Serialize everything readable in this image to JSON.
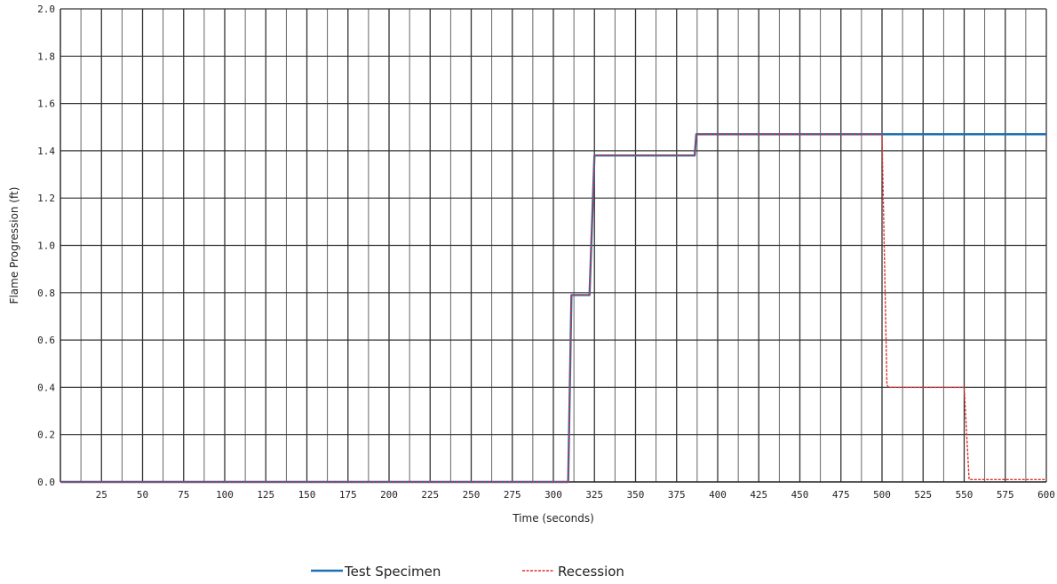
{
  "chart_data": {
    "type": "line",
    "xlabel": "Time (seconds)",
    "ylabel": "Flame Progression (ft)",
    "xlim": [
      0,
      600
    ],
    "ylim": [
      0,
      2.0
    ],
    "x_ticks": [
      25,
      50,
      75,
      100,
      125,
      150,
      175,
      200,
      225,
      250,
      275,
      300,
      325,
      350,
      375,
      400,
      425,
      450,
      475,
      500,
      525,
      550,
      575,
      600
    ],
    "y_ticks": [
      "0.0",
      "0.2",
      "0.4",
      "0.6",
      "0.8",
      "1.0",
      "1.2",
      "1.4",
      "1.6",
      "1.8",
      "2.0"
    ],
    "grid": true,
    "legend_position": "bottom-center",
    "series": [
      {
        "name": "Test Specimen",
        "color": "#1f6fb4",
        "style": "solid",
        "points": [
          [
            0,
            0
          ],
          [
            309,
            0
          ],
          [
            311,
            0.79
          ],
          [
            322,
            0.79
          ],
          [
            325,
            1.38
          ],
          [
            386,
            1.38
          ],
          [
            387,
            1.47
          ],
          [
            600,
            1.47
          ]
        ]
      },
      {
        "name": "Recession",
        "color": "#e03030",
        "style": "dashed",
        "points": [
          [
            0,
            0
          ],
          [
            309,
            0
          ],
          [
            311,
            0.79
          ],
          [
            322,
            0.79
          ],
          [
            325,
            1.38
          ],
          [
            386,
            1.38
          ],
          [
            387,
            1.47
          ],
          [
            500,
            1.47
          ],
          [
            503,
            0.41
          ],
          [
            504,
            0.4
          ],
          [
            550,
            0.4
          ],
          [
            553,
            0.01
          ],
          [
            600,
            0.01
          ]
        ]
      }
    ]
  }
}
